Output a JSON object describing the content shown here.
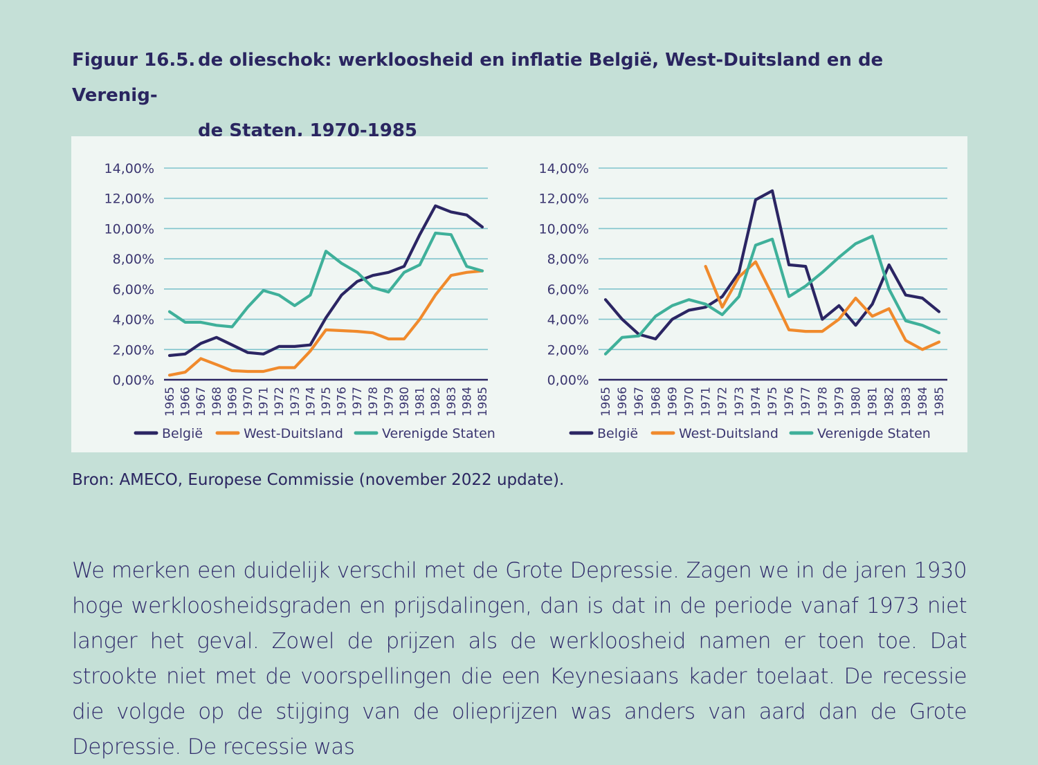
{
  "figure": {
    "number": "Figuur 16.5.",
    "title_line1": "de olieschok: werkloosheid en inflatie België, West-Duitsland en de Verenig-",
    "title_line2": "de Staten, 1970-1985"
  },
  "source": "Bron: AMECO, Europese Commissie (november 2022 update).",
  "body": {
    "paragraph": "We merken een duidelijk verschil met de Grote Depressie. Zagen we in de jaren 1930 hoge werkloosheidsgraden en prijsdalingen, dan is dat in de periode vanaf 1973 niet langer het geval. Zowel de prijzen als de werkloosheid namen er toen toe. Dat strookte niet met de voorspellingen die een Keynesiaans kader toelaat. De recessie die volgde op de stijging van de olieprijzen was anders van aard dan de Grote Depressie. De recessie was"
  },
  "colors": {
    "belgie": "#2b2563",
    "west_duitsland": "#f08a2c",
    "verenigde_staten": "#3fb09a",
    "grid": "#7fc3cc",
    "axis": "#2b2563"
  },
  "chart_data": [
    {
      "type": "line",
      "title": "",
      "xlabel": "",
      "ylabel": "",
      "ylim": [
        0,
        14
      ],
      "yticks": [
        "0,00%",
        "2,00%",
        "4,00%",
        "6,00%",
        "8,00%",
        "10,00%",
        "12,00%",
        "14,00%"
      ],
      "grid": true,
      "legend_position": "bottom",
      "categories": [
        "1965",
        "1966",
        "1967",
        "1968",
        "1969",
        "1970",
        "1971",
        "1972",
        "1973",
        "1974",
        "1975",
        "1976",
        "1977",
        "1978",
        "1979",
        "1980",
        "1981",
        "1982",
        "1983",
        "1984",
        "1985"
      ],
      "series": [
        {
          "name": "België",
          "color_key": "belgie",
          "values": [
            1.6,
            1.7,
            2.4,
            2.8,
            2.3,
            1.8,
            1.7,
            2.2,
            2.2,
            2.3,
            4.1,
            5.6,
            6.5,
            6.9,
            7.1,
            7.5,
            9.6,
            11.5,
            11.1,
            10.9,
            10.1
          ]
        },
        {
          "name": "West-Duitsland",
          "color_key": "west_duitsland",
          "values": [
            0.3,
            0.5,
            1.4,
            1.0,
            0.6,
            0.55,
            0.55,
            0.8,
            0.8,
            1.9,
            3.3,
            3.25,
            3.2,
            3.1,
            2.7,
            2.7,
            4.0,
            5.6,
            6.9,
            7.1,
            7.2
          ]
        },
        {
          "name": "Verenigde Staten",
          "color_key": "verenigde_staten",
          "values": [
            4.5,
            3.8,
            3.8,
            3.6,
            3.5,
            4.8,
            5.9,
            5.6,
            4.9,
            5.6,
            8.5,
            7.7,
            7.1,
            6.1,
            5.8,
            7.1,
            7.6,
            9.7,
            9.6,
            7.5,
            7.2
          ]
        }
      ]
    },
    {
      "type": "line",
      "title": "",
      "xlabel": "",
      "ylabel": "",
      "ylim": [
        0,
        14
      ],
      "yticks": [
        "0,00%",
        "2,00%",
        "4,00%",
        "6,00%",
        "8,00%",
        "10,00%",
        "12,00%",
        "14,00%"
      ],
      "grid": true,
      "legend_position": "bottom",
      "categories": [
        "1965",
        "1966",
        "1967",
        "1968",
        "1969",
        "1970",
        "1971",
        "1972",
        "1973",
        "1974",
        "1975",
        "1976",
        "1977",
        "1978",
        "1979",
        "1980",
        "1981",
        "1982",
        "1983",
        "1984",
        "1985"
      ],
      "series": [
        {
          "name": "België",
          "color_key": "belgie",
          "values": [
            5.3,
            4.0,
            3.0,
            2.7,
            4.0,
            4.6,
            4.8,
            5.5,
            7.1,
            11.9,
            12.5,
            7.6,
            7.5,
            4.0,
            4.9,
            3.6,
            5.0,
            7.6,
            5.6,
            5.4,
            4.5
          ]
        },
        {
          "name": "West-Duitsland",
          "color_key": "west_duitsland",
          "values": [
            null,
            null,
            null,
            null,
            null,
            null,
            7.5,
            4.8,
            6.8,
            7.8,
            5.6,
            3.3,
            3.2,
            3.2,
            4.0,
            5.4,
            4.2,
            4.7,
            2.6,
            2.0,
            2.5
          ]
        },
        {
          "name": "Verenigde Staten",
          "color_key": "verenigde_staten",
          "values": [
            1.7,
            2.8,
            2.9,
            4.2,
            4.9,
            5.3,
            5.0,
            4.3,
            5.5,
            8.9,
            9.3,
            5.5,
            6.2,
            7.1,
            8.1,
            9.0,
            9.5,
            6.0,
            3.9,
            3.6,
            3.1
          ]
        }
      ]
    }
  ]
}
